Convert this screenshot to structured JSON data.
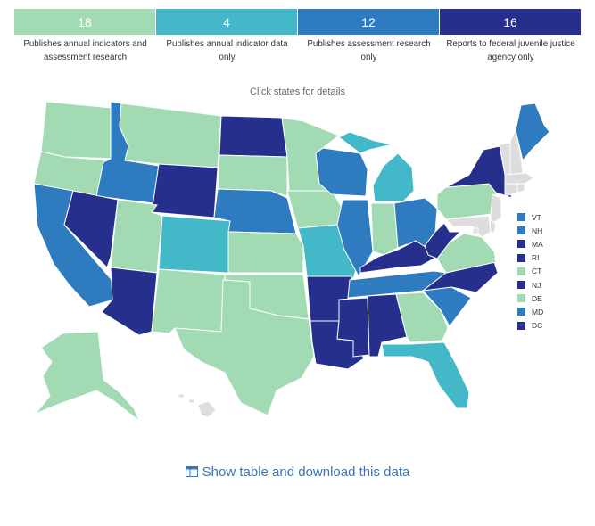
{
  "legend": [
    {
      "count": "18",
      "label": "Publishes annual indicators and assessment research",
      "color": "#a2dbb3"
    },
    {
      "count": "4",
      "label": "Publishes annual indicator data only",
      "color": "#43b8c8"
    },
    {
      "count": "12",
      "label": "Publishes assessment research only",
      "color": "#2f7bbf"
    },
    {
      "count": "16",
      "label": "Reports to federal juvenile justice agency only",
      "color": "#262f8c"
    }
  ],
  "hint": "Click states for details",
  "small_states": [
    {
      "abbr": "VT",
      "category": 2
    },
    {
      "abbr": "NH",
      "category": 2
    },
    {
      "abbr": "MA",
      "category": 3
    },
    {
      "abbr": "RI",
      "category": 3
    },
    {
      "abbr": "CT",
      "category": 0
    },
    {
      "abbr": "NJ",
      "category": 3
    },
    {
      "abbr": "DE",
      "category": 0
    },
    {
      "abbr": "MD",
      "category": 2
    },
    {
      "abbr": "DC",
      "category": 3
    }
  ],
  "no_data_color": "#dddddd",
  "states": {
    "WA": 0,
    "OR": 0,
    "CA": 2,
    "ID": 2,
    "NV": 3,
    "MT": 0,
    "WY": 3,
    "UT": 0,
    "AZ": 3,
    "ND": 3,
    "SD": 0,
    "NE": 2,
    "CO": 1,
    "NM": 0,
    "KS": 0,
    "OK": 0,
    "TX": 0,
    "MN": 0,
    "IA": 0,
    "MO": 1,
    "AR": 3,
    "LA": 3,
    "WI": 2,
    "IL": 2,
    "MI": 1,
    "IN": 0,
    "OH": 2,
    "KY": 3,
    "TN": 2,
    "MS": 3,
    "AL": 3,
    "GA": 0,
    "FL": 1,
    "SC": 2,
    "NC": 3,
    "VA": 0,
    "WV": 3,
    "PA": 0,
    "NY": 3,
    "ME": 2,
    "AK": 0,
    "HI": null
  },
  "show_table_label": "Show table and download this data",
  "icons": {
    "show_table": "table-icon"
  }
}
